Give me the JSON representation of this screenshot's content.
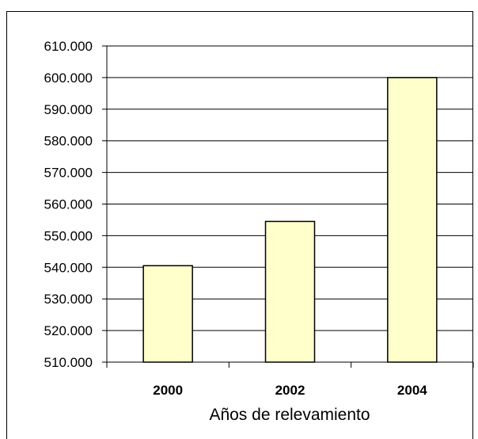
{
  "chart_data": {
    "type": "bar",
    "title": "",
    "xlabel": "Años de relevamiento",
    "ylabel": "",
    "categories": [
      "2000",
      "2002",
      "2004"
    ],
    "values": [
      540500,
      554500,
      600000
    ],
    "ylim": [
      510000,
      610000
    ],
    "ytick_step": 10000,
    "yticks": [
      "510.000",
      "520.000",
      "530.000",
      "540.000",
      "550.000",
      "560.000",
      "570.000",
      "580.000",
      "590.000",
      "600.000",
      "610.000"
    ],
    "grid": true,
    "legend": "none",
    "bar_color": "#FFFFCC",
    "bar_edge_color": "#000000"
  }
}
